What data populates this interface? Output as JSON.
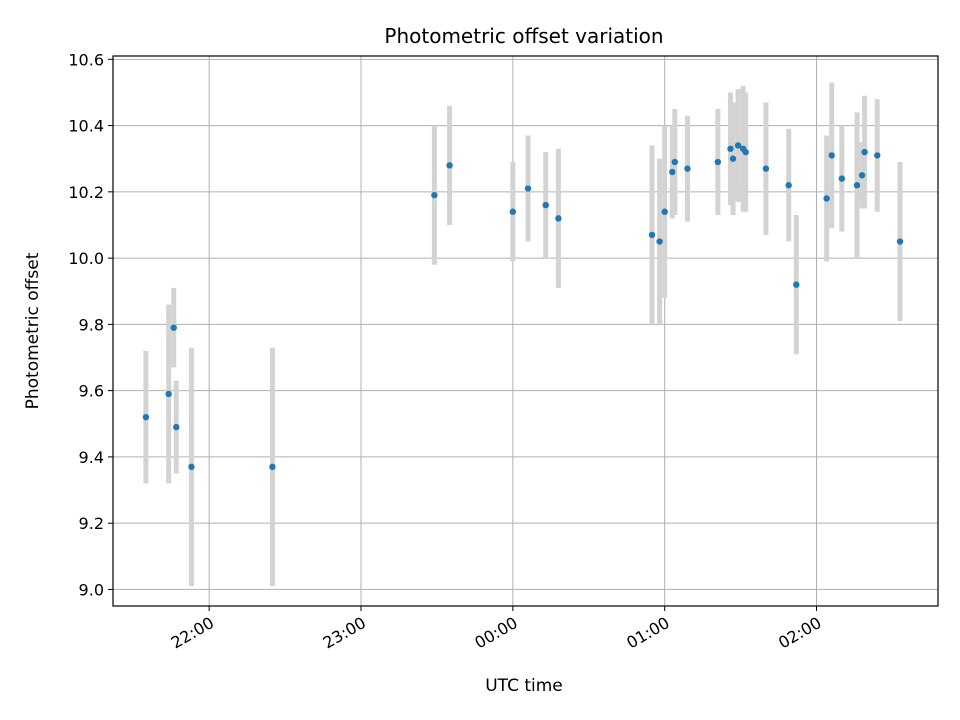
{
  "chart_data": {
    "type": "scatter",
    "title": "Photometric offset variation",
    "xlabel": "UTC time",
    "ylabel": "Photometric offset",
    "x_axis_type": "time",
    "xlim": [
      "21:22",
      "02:48"
    ],
    "ylim": [
      8.95,
      10.61
    ],
    "x_ticks": [
      "22:00",
      "23:00",
      "00:00",
      "01:00",
      "02:00"
    ],
    "y_ticks": [
      "9.0",
      "9.2",
      "9.4",
      "9.6",
      "9.8",
      "10.0",
      "10.2",
      "10.4",
      "10.6"
    ],
    "grid": true,
    "point_color": "#1f77b4",
    "errorbar_color": "#d3d3d3",
    "points": [
      {
        "time": "21:35",
        "y": 9.52,
        "err": 0.2
      },
      {
        "time": "21:44",
        "y": 9.59,
        "err": 0.27
      },
      {
        "time": "21:46",
        "y": 9.79,
        "err": 0.12
      },
      {
        "time": "21:47",
        "y": 9.49,
        "err": 0.14
      },
      {
        "time": "21:53",
        "y": 9.37,
        "err": 0.36
      },
      {
        "time": "22:25",
        "y": 9.37,
        "err": 0.36
      },
      {
        "time": "23:29",
        "y": 10.19,
        "err": 0.21
      },
      {
        "time": "23:35",
        "y": 10.28,
        "err": 0.18
      },
      {
        "time": "00:00",
        "y": 10.14,
        "err": 0.15
      },
      {
        "time": "00:06",
        "y": 10.21,
        "err": 0.16
      },
      {
        "time": "00:13",
        "y": 10.16,
        "err": 0.16
      },
      {
        "time": "00:18",
        "y": 10.12,
        "err": 0.21
      },
      {
        "time": "00:55",
        "y": 10.07,
        "err": 0.27
      },
      {
        "time": "00:58",
        "y": 10.05,
        "err": 0.25
      },
      {
        "time": "01:00",
        "y": 10.14,
        "err": 0.26
      },
      {
        "time": "01:03",
        "y": 10.26,
        "err": 0.14
      },
      {
        "time": "01:04",
        "y": 10.29,
        "err": 0.16
      },
      {
        "time": "01:09",
        "y": 10.27,
        "err": 0.16
      },
      {
        "time": "01:21",
        "y": 10.29,
        "err": 0.16
      },
      {
        "time": "01:26",
        "y": 10.33,
        "err": 0.17
      },
      {
        "time": "01:27",
        "y": 10.3,
        "err": 0.17
      },
      {
        "time": "01:29",
        "y": 10.34,
        "err": 0.17
      },
      {
        "time": "01:31",
        "y": 10.33,
        "err": 0.19
      },
      {
        "time": "01:32",
        "y": 10.32,
        "err": 0.18
      },
      {
        "time": "01:40",
        "y": 10.27,
        "err": 0.2
      },
      {
        "time": "01:49",
        "y": 10.22,
        "err": 0.17
      },
      {
        "time": "01:52",
        "y": 9.92,
        "err": 0.21
      },
      {
        "time": "02:04",
        "y": 10.18,
        "err": 0.19
      },
      {
        "time": "02:06",
        "y": 10.31,
        "err": 0.22
      },
      {
        "time": "02:10",
        "y": 10.24,
        "err": 0.16
      },
      {
        "time": "02:16",
        "y": 10.22,
        "err": 0.22
      },
      {
        "time": "02:18",
        "y": 10.25,
        "err": 0.1
      },
      {
        "time": "02:19",
        "y": 10.32,
        "err": 0.17
      },
      {
        "time": "02:24",
        "y": 10.31,
        "err": 0.17
      },
      {
        "time": "02:33",
        "y": 10.05,
        "err": 0.24
      }
    ]
  }
}
